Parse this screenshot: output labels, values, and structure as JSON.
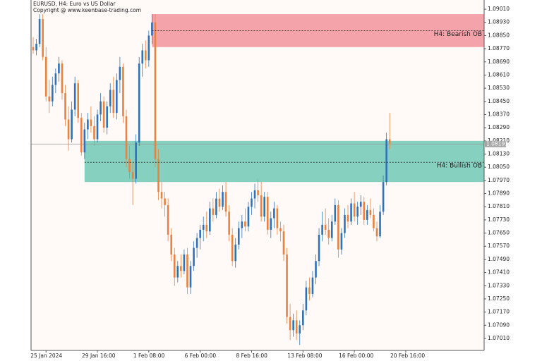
{
  "chart_data": {
    "type": "candlestick",
    "title": "EURUSD, H4:  Euro vs US Dollar",
    "subtitle": "Copyright @ www.keenbase-trading.com",
    "up_color": "#2f72b8",
    "down_color": "#e9823f",
    "open": [
      1.0878,
      1.0876,
      1.088,
      1.0895,
      1.0872,
      1.0848,
      1.0845,
      1.0855,
      1.0862,
      1.0868,
      1.085,
      1.0834,
      1.0822,
      1.084,
      1.0856,
      1.0835,
      1.0814,
      1.0828,
      1.0834,
      1.083,
      1.0822,
      1.0837,
      1.0845,
      1.0829,
      1.0842,
      1.0852,
      1.0838,
      1.0858,
      1.0866,
      1.0836,
      1.081,
      1.0802,
      1.0798,
      1.082,
      1.0868,
      1.0876,
      1.087,
      1.0885,
      1.0893,
      1.081,
      1.079,
      1.0786,
      1.0782,
      1.0764,
      1.0752,
      1.0738,
      1.0745,
      1.0742,
      1.0752,
      1.0732,
      1.0745,
      1.0756,
      1.0762,
      1.0767,
      1.077,
      1.0766,
      1.078,
      1.0776,
      1.0786,
      1.0781,
      1.079,
      1.0778,
      1.0764,
      1.0748,
      1.0758,
      1.0768,
      1.0772,
      1.0769,
      1.0781,
      1.0786,
      1.0791,
      1.0788,
      1.0775,
      1.0787,
      1.0767,
      1.0774,
      1.078,
      1.0768,
      1.0766,
      1.0752,
      1.0714,
      1.0706,
      1.0712,
      1.0704,
      1.0709,
      1.0718,
      1.0732,
      1.0728,
      1.0738,
      1.0748,
      1.0764,
      1.077,
      1.0767,
      1.0762,
      1.0772,
      1.0782,
      1.0755,
      1.0765,
      1.0776,
      1.0772,
      1.0783,
      1.0775,
      1.0781,
      1.0784,
      1.0773,
      1.0779,
      1.0776,
      1.0768,
      1.0763,
      1.0778,
      1.0796,
      1.0822
    ],
    "high": [
      1.0884,
      1.0883,
      1.0898,
      1.0898,
      1.0878,
      1.0858,
      1.086,
      1.0865,
      1.0872,
      1.087,
      1.0855,
      1.0842,
      1.0845,
      1.086,
      1.0858,
      1.0838,
      1.0832,
      1.0838,
      1.0842,
      1.0836,
      1.084,
      1.085,
      1.0848,
      1.0845,
      1.0856,
      1.086,
      1.0862,
      1.0872,
      1.0868,
      1.084,
      1.0818,
      1.0808,
      1.0825,
      1.0872,
      1.088,
      1.0882,
      1.0888,
      1.0898,
      1.0898,
      1.0816,
      1.0796,
      1.079,
      1.0786,
      1.0768,
      1.0756,
      1.0748,
      1.0752,
      1.0755,
      1.0756,
      1.0748,
      1.076,
      1.0765,
      1.077,
      1.0775,
      1.0778,
      1.0784,
      1.0786,
      1.079,
      1.0792,
      1.0794,
      1.0796,
      1.0782,
      1.0768,
      1.0762,
      1.0772,
      1.0776,
      1.078,
      1.0784,
      1.079,
      1.0795,
      1.0798,
      1.0796,
      1.079,
      1.079,
      1.0778,
      1.0784,
      1.0782,
      1.0772,
      1.077,
      1.0756,
      1.0722,
      1.0716,
      1.0718,
      1.0712,
      1.0722,
      1.0736,
      1.0738,
      1.0742,
      1.0752,
      1.0768,
      1.0778,
      1.078,
      1.0774,
      1.0776,
      1.0786,
      1.0785,
      1.0768,
      1.078,
      1.0782,
      1.0786,
      1.079,
      1.0784,
      1.0788,
      1.0787,
      1.0782,
      1.0786,
      1.078,
      1.0772,
      1.0782,
      1.08,
      1.0826,
      1.0838
    ],
    "low": [
      1.0874,
      1.0873,
      1.0878,
      1.087,
      1.0845,
      1.0838,
      1.0842,
      1.085,
      1.0857,
      1.0846,
      1.083,
      1.0815,
      1.082,
      1.0836,
      1.0832,
      1.0812,
      1.081,
      1.0822,
      1.0826,
      1.0818,
      1.082,
      1.0833,
      1.0826,
      1.0825,
      1.0838,
      1.0835,
      1.0834,
      1.085,
      1.0832,
      1.0805,
      1.0798,
      1.0782,
      1.0795,
      1.0818,
      1.086,
      1.0865,
      1.0866,
      1.088,
      1.0805,
      1.0785,
      1.078,
      1.0775,
      1.076,
      1.0748,
      1.0733,
      1.0735,
      1.0738,
      1.074,
      1.0728,
      1.0728,
      1.0742,
      1.075,
      1.0755,
      1.076,
      1.0762,
      1.0764,
      1.0772,
      1.0774,
      1.0778,
      1.0779,
      1.0775,
      1.076,
      1.0745,
      1.0744,
      1.0755,
      1.0762,
      1.0766,
      1.0766,
      1.0776,
      1.078,
      1.0784,
      1.0772,
      1.0772,
      1.0764,
      1.0762,
      1.0768,
      1.0764,
      1.076,
      1.0748,
      1.071,
      1.07,
      1.0702,
      1.07,
      1.0697,
      1.0706,
      1.0715,
      1.0724,
      1.0726,
      1.0734,
      1.0745,
      1.076,
      1.0764,
      1.0758,
      1.076,
      1.077,
      1.075,
      1.0752,
      1.0762,
      1.0768,
      1.077,
      1.0772,
      1.077,
      1.0776,
      1.077,
      1.077,
      1.0774,
      1.0766,
      1.076,
      1.0762,
      1.0776,
      1.0794,
      1.0816
    ],
    "close": [
      1.0876,
      1.088,
      1.0895,
      1.0872,
      1.0848,
      1.0845,
      1.0855,
      1.0862,
      1.0868,
      1.085,
      1.0834,
      1.0822,
      1.084,
      1.0856,
      1.0835,
      1.0814,
      1.0828,
      1.0834,
      1.083,
      1.0822,
      1.0837,
      1.0845,
      1.0829,
      1.0842,
      1.0852,
      1.0838,
      1.0858,
      1.0866,
      1.0836,
      1.081,
      1.0802,
      1.0798,
      1.082,
      1.0868,
      1.0876,
      1.087,
      1.0885,
      1.0893,
      1.081,
      1.079,
      1.0786,
      1.0782,
      1.0764,
      1.0752,
      1.0738,
      1.0745,
      1.0742,
      1.0752,
      1.0732,
      1.0745,
      1.0756,
      1.0762,
      1.0767,
      1.077,
      1.0766,
      1.078,
      1.0776,
      1.0786,
      1.0781,
      1.079,
      1.0778,
      1.0764,
      1.0748,
      1.0758,
      1.0768,
      1.0772,
      1.0769,
      1.0781,
      1.0786,
      1.0791,
      1.0788,
      1.0775,
      1.0787,
      1.0767,
      1.0774,
      1.078,
      1.0768,
      1.0766,
      1.0752,
      1.0714,
      1.0706,
      1.0712,
      1.0704,
      1.0709,
      1.0718,
      1.0732,
      1.0728,
      1.0738,
      1.0748,
      1.0764,
      1.077,
      1.0767,
      1.0762,
      1.0772,
      1.0782,
      1.0755,
      1.0765,
      1.0776,
      1.0772,
      1.0783,
      1.0775,
      1.0781,
      1.0784,
      1.0773,
      1.0779,
      1.0776,
      1.0768,
      1.0763,
      1.0778,
      1.0796,
      1.0822,
      1.08191
    ],
    "last_price": {
      "value": 1.08191,
      "label": "1.08191"
    },
    "zones": [
      {
        "name": "H4: Bearish OB",
        "start": 37,
        "top": 1.0898,
        "bottom": 1.0878,
        "mid": 1.0888,
        "color": "#f4a3ab"
      },
      {
        "name": "H4: Bullish OB",
        "start": 16,
        "top": 1.0821,
        "bottom": 1.0796,
        "mid": 1.0808,
        "color": "#86d0bf"
      }
    ],
    "xlim": [
      -0.66,
      140.4
    ],
    "xticks": [
      {
        "value": 4,
        "label": "25 Jan 2024"
      },
      {
        "value": 20,
        "label": "29 Jan 16:00"
      },
      {
        "value": 36,
        "label": "1 Feb 08:00"
      },
      {
        "value": 52,
        "label": "6 Feb 00:00"
      },
      {
        "value": 68,
        "label": "8 Feb 16:00"
      },
      {
        "value": 84,
        "label": "13 Feb 08:00"
      },
      {
        "value": 100,
        "label": "16 Feb 00:00"
      },
      {
        "value": 116,
        "label": "20 Feb 16:00"
      }
    ],
    "ylim": [
      1.06937,
      1.09066
    ],
    "yticks": [
      {
        "value": 1.0701,
        "label": "1.07010"
      },
      {
        "value": 1.0709,
        "label": "1.07090"
      },
      {
        "value": 1.0717,
        "label": "1.07170"
      },
      {
        "value": 1.0725,
        "label": "1.07250"
      },
      {
        "value": 1.0733,
        "label": "1.07330"
      },
      {
        "value": 1.0741,
        "label": "1.07410"
      },
      {
        "value": 1.0749,
        "label": "1.07490"
      },
      {
        "value": 1.0757,
        "label": "1.07570"
      },
      {
        "value": 1.0765,
        "label": "1.07650"
      },
      {
        "value": 1.0773,
        "label": "1.07730"
      },
      {
        "value": 1.0781,
        "label": "1.07810"
      },
      {
        "value": 1.0789,
        "label": "1.07890"
      },
      {
        "value": 1.0797,
        "label": "1.07970"
      },
      {
        "value": 1.0805,
        "label": "1.08050"
      },
      {
        "value": 1.0813,
        "label": "1.08130"
      },
      {
        "value": 1.0821,
        "label": "1.08210"
      },
      {
        "value": 1.0829,
        "label": "1.08290"
      },
      {
        "value": 1.0837,
        "label": "1.08370"
      },
      {
        "value": 1.0845,
        "label": "1.08450"
      },
      {
        "value": 1.0853,
        "label": "1.08530"
      },
      {
        "value": 1.0861,
        "label": "1.08610"
      },
      {
        "value": 1.0869,
        "label": "1.08690"
      },
      {
        "value": 1.0877,
        "label": "1.08770"
      },
      {
        "value": 1.0885,
        "label": "1.08850"
      },
      {
        "value": 1.0893,
        "label": "1.08930"
      },
      {
        "value": 1.0901,
        "label": "1.09010"
      }
    ]
  }
}
